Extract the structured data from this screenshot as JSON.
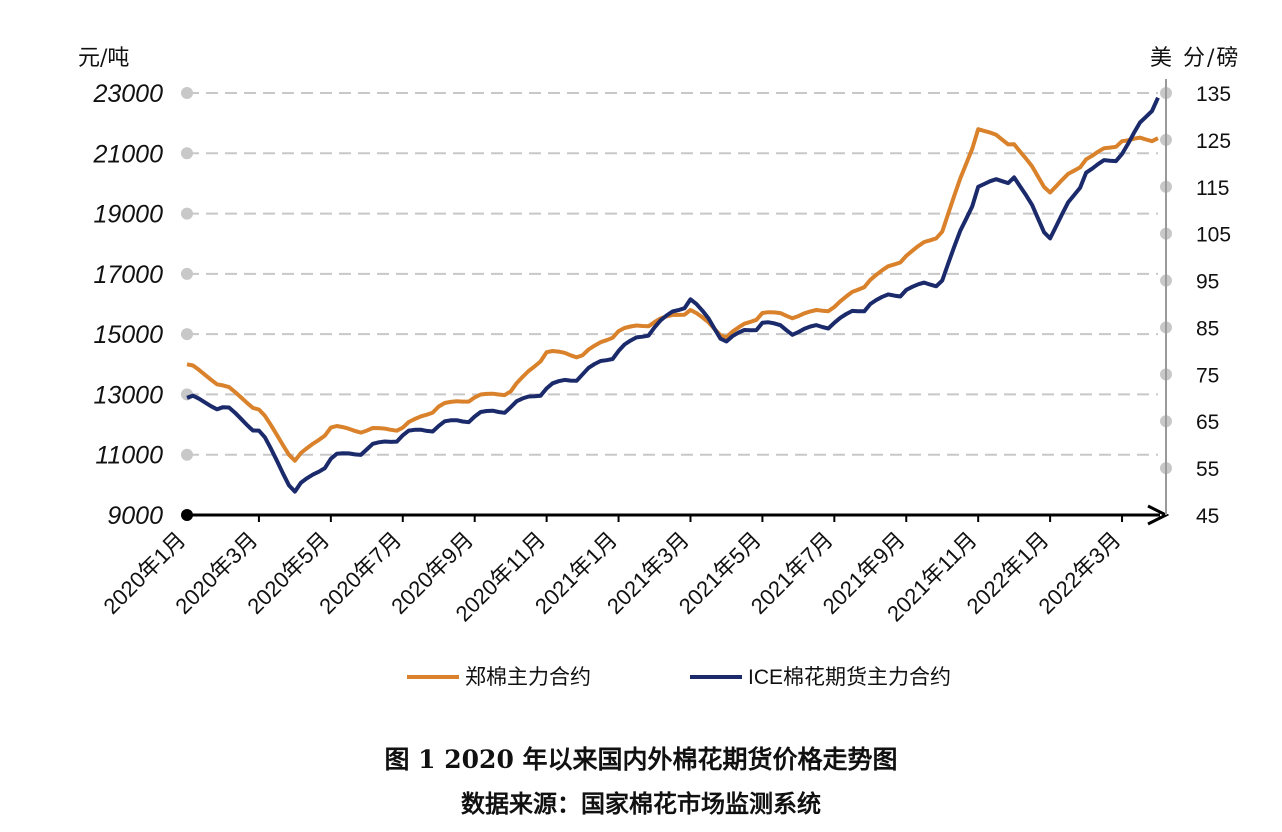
{
  "chart_data": {
    "type": "line",
    "title": "图 1 2020 年以来国内外棉花期货价格走势图",
    "source": "数据来源：国家棉花市场监测系统",
    "ylabel_left": "元/吨",
    "ylabel_right": "美 分/磅",
    "ylim_left": [
      9000,
      23000
    ],
    "ylim_right": [
      45,
      135
    ],
    "yticks_left": [
      "23000",
      "21000",
      "19000",
      "17000",
      "15000",
      "13000",
      "11000",
      "9000"
    ],
    "yticks_right": [
      "135",
      "125",
      "115",
      "105",
      "95",
      "85",
      "75",
      "65",
      "55",
      "45"
    ],
    "xticks": [
      "2020年1月",
      "2020年3月",
      "2020年5月",
      "2020年7月",
      "2020年9月",
      "2020年11月",
      "2021年1月",
      "2021年3月",
      "2021年5月",
      "2021年7月",
      "2021年9月",
      "2021年11月",
      "2022年1月",
      "2022年3月"
    ],
    "x": [
      "2020-01",
      "2020-02",
      "2020-03",
      "2020-04",
      "2020-05",
      "2020-06",
      "2020-07",
      "2020-08",
      "2020-09",
      "2020-10",
      "2020-11",
      "2020-12",
      "2021-01",
      "2021-02",
      "2021-03",
      "2021-04",
      "2021-05",
      "2021-06",
      "2021-07",
      "2021-08",
      "2021-09",
      "2021-10",
      "2021-11",
      "2021-12",
      "2022-01",
      "2022-02",
      "2022-03",
      "2022-04"
    ],
    "grid": true,
    "legend_position": "bottom",
    "series": [
      {
        "name": "郑棉主力合约",
        "axis": "left",
        "color": "#D9822B",
        "values": [
          14000,
          13300,
          12500,
          10800,
          11900,
          11800,
          11900,
          12600,
          12900,
          13100,
          14400,
          14300,
          15100,
          15400,
          15800,
          14900,
          15700,
          15600,
          15900,
          16800,
          17600,
          18400,
          21800,
          21300,
          19700,
          20800,
          21400,
          21500
        ]
      },
      {
        "name": "ICE棉花期货主力合约",
        "axis": "right",
        "color": "#1B2A6B",
        "values": [
          70,
          68,
          63,
          50,
          57,
          59,
          62,
          64,
          66,
          68,
          72,
          75,
          80,
          85,
          91,
          82,
          86,
          84,
          86,
          90,
          93,
          95,
          115,
          117,
          104,
          118,
          122,
          134
        ]
      }
    ]
  }
}
